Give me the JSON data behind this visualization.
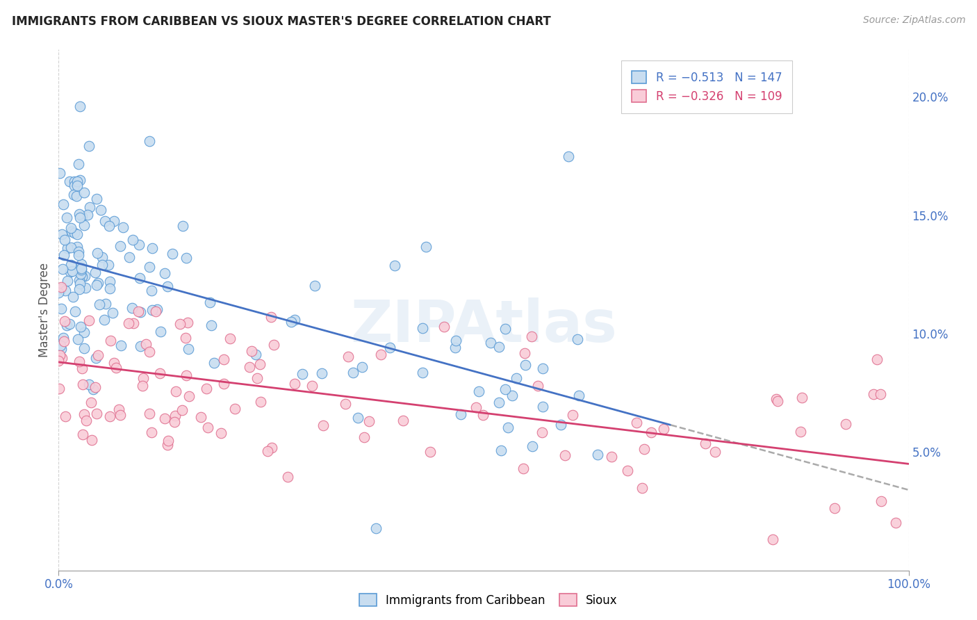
{
  "title": "IMMIGRANTS FROM CARIBBEAN VS SIOUX MASTER'S DEGREE CORRELATION CHART",
  "source": "Source: ZipAtlas.com",
  "ylabel": "Master's Degree",
  "ylabel_right_ticks": [
    "20.0%",
    "15.0%",
    "10.0%",
    "5.0%"
  ],
  "ylabel_right_vals": [
    0.2,
    0.15,
    0.1,
    0.05
  ],
  "legend_blue_r": "R = −0.513",
  "legend_blue_n": "N = 147",
  "legend_pink_r": "R = −0.326",
  "legend_pink_n": "N = 109",
  "blue_fill": "#c8ddf0",
  "pink_fill": "#f9ccd8",
  "blue_edge": "#5b9bd5",
  "pink_edge": "#e07090",
  "blue_line": "#4472c4",
  "pink_line": "#d44070",
  "dash_color": "#aaaaaa",
  "watermark": "ZIPAtlas",
  "xmin": 0.0,
  "xmax": 1.0,
  "ymin": 0.0,
  "ymax": 0.22,
  "blue_intercept": 0.132,
  "blue_slope": -0.098,
  "pink_intercept": 0.088,
  "pink_slope": -0.043
}
